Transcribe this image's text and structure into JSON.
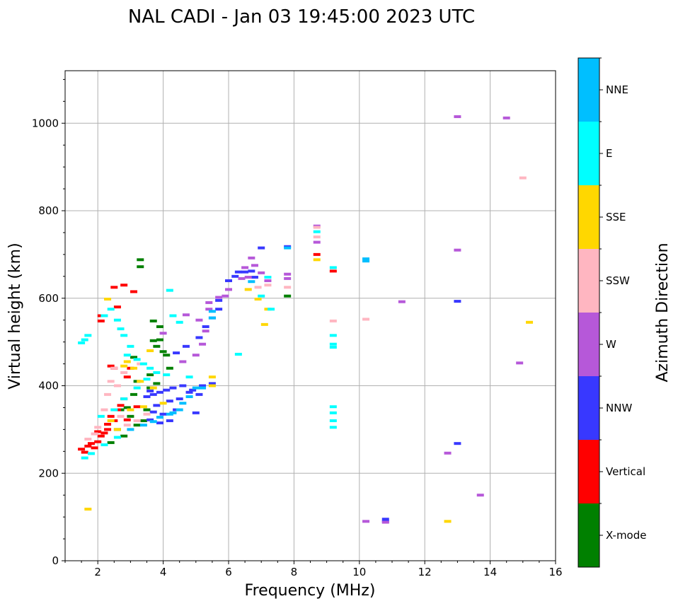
{
  "chart_data": {
    "type": "scatter",
    "title": "NAL CADI - Jan 03 19:45:00 2023 UTC",
    "xlabel": "Frequency (MHz)",
    "ylabel": "Virtual height (km)",
    "xlim": [
      1,
      16
    ],
    "ylim": [
      0,
      1120
    ],
    "xticks": [
      2,
      4,
      6,
      8,
      10,
      12,
      14,
      16
    ],
    "yticks": [
      0,
      200,
      400,
      600,
      800,
      1000
    ],
    "grid": true,
    "colorbar": {
      "label": "Azimuth Direction",
      "categories": [
        "X-mode",
        "Vertical",
        "NNW",
        "W",
        "SSW",
        "SSE",
        "E",
        "NNE"
      ],
      "colors": [
        "#008000",
        "#ff0000",
        "#3838ff",
        "#b658d9",
        "#ffb6c1",
        "#ffd700",
        "#00ffff",
        "#00bfff"
      ]
    },
    "series": [
      {
        "name": "X-mode",
        "points": [
          [
            3.3,
            688
          ],
          [
            3.3,
            672
          ],
          [
            3.7,
            548
          ],
          [
            3.9,
            535
          ],
          [
            3.7,
            503
          ],
          [
            3.8,
            490
          ],
          [
            4.0,
            478
          ],
          [
            3.2,
            410
          ],
          [
            3.6,
            395
          ],
          [
            3.1,
            380
          ],
          [
            2.9,
            350
          ],
          [
            3.4,
            320
          ],
          [
            3.2,
            310
          ],
          [
            2.6,
            300
          ],
          [
            2.7,
            345
          ],
          [
            3.0,
            330
          ],
          [
            3.5,
            345
          ],
          [
            3.9,
            505
          ],
          [
            4.1,
            470
          ],
          [
            3.8,
            405
          ],
          [
            7.8,
            605
          ],
          [
            3.1,
            465
          ],
          [
            3.6,
            425
          ],
          [
            2.4,
            270
          ],
          [
            2.8,
            285
          ],
          [
            4.2,
            440
          ]
        ]
      },
      {
        "name": "Vertical",
        "points": [
          [
            1.5,
            255
          ],
          [
            1.6,
            248
          ],
          [
            1.7,
            262
          ],
          [
            1.8,
            268
          ],
          [
            2.0,
            272
          ],
          [
            2.1,
            285
          ],
          [
            2.2,
            292
          ],
          [
            2.3,
            300
          ],
          [
            2.5,
            320
          ],
          [
            2.4,
            330
          ],
          [
            2.6,
            345
          ],
          [
            2.7,
            355
          ],
          [
            2.8,
            370
          ],
          [
            2.5,
            440
          ],
          [
            2.4,
            445
          ],
          [
            2.1,
            548
          ],
          [
            2.1,
            560
          ],
          [
            2.5,
            625
          ],
          [
            2.6,
            580
          ],
          [
            2.8,
            630
          ],
          [
            3.1,
            615
          ],
          [
            3.0,
            440
          ],
          [
            2.9,
            420
          ],
          [
            8.7,
            700
          ],
          [
            9.2,
            662
          ],
          [
            2.0,
            295
          ],
          [
            2.3,
            312
          ],
          [
            2.9,
            322
          ],
          [
            3.2,
            352
          ],
          [
            1.9,
            258
          ]
        ]
      },
      {
        "name": "NNW",
        "points": [
          [
            3.5,
            375
          ],
          [
            3.7,
            380
          ],
          [
            3.9,
            385
          ],
          [
            4.1,
            390
          ],
          [
            4.3,
            395
          ],
          [
            4.6,
            400
          ],
          [
            4.9,
            390
          ],
          [
            5.2,
            400
          ],
          [
            5.5,
            405
          ],
          [
            5.1,
            380
          ],
          [
            4.8,
            385
          ],
          [
            3.8,
            355
          ],
          [
            4.2,
            365
          ],
          [
            4.5,
            370
          ],
          [
            3.7,
            340
          ],
          [
            4.0,
            335
          ],
          [
            3.6,
            322
          ],
          [
            4.4,
            345
          ],
          [
            3.9,
            315
          ],
          [
            4.2,
            320
          ],
          [
            5.3,
            535
          ],
          [
            5.1,
            510
          ],
          [
            5.5,
            555
          ],
          [
            5.7,
            595
          ],
          [
            6.0,
            640
          ],
          [
            6.2,
            650
          ],
          [
            6.5,
            660
          ],
          [
            6.8,
            648
          ],
          [
            7.0,
            715
          ],
          [
            7.8,
            718
          ],
          [
            13.0,
            593
          ],
          [
            13.0,
            268
          ],
          [
            10.8,
            90
          ],
          [
            10.8,
            95
          ],
          [
            5.0,
            338
          ],
          [
            3.6,
            388
          ],
          [
            4.4,
            475
          ],
          [
            4.7,
            490
          ],
          [
            5.7,
            575
          ],
          [
            6.3,
            660
          ],
          [
            6.7,
            662
          ]
        ]
      },
      {
        "name": "W",
        "points": [
          [
            4.0,
            520
          ],
          [
            4.7,
            562
          ],
          [
            5.1,
            550
          ],
          [
            5.4,
            590
          ],
          [
            5.7,
            602
          ],
          [
            6.0,
            620
          ],
          [
            6.4,
            645
          ],
          [
            6.5,
            670
          ],
          [
            6.7,
            692
          ],
          [
            6.8,
            675
          ],
          [
            7.0,
            658
          ],
          [
            7.2,
            640
          ],
          [
            7.8,
            655
          ],
          [
            8.7,
            728
          ],
          [
            8.7,
            765
          ],
          [
            11.3,
            592
          ],
          [
            13.0,
            710
          ],
          [
            13.0,
            1015
          ],
          [
            14.5,
            1012
          ],
          [
            14.9,
            452
          ],
          [
            12.7,
            246
          ],
          [
            13.7,
            150
          ],
          [
            10.2,
            90
          ],
          [
            10.8,
            88
          ],
          [
            5.3,
            525
          ],
          [
            5.4,
            575
          ],
          [
            5.9,
            605
          ],
          [
            6.6,
            648
          ],
          [
            7.8,
            645
          ],
          [
            5.2,
            495
          ],
          [
            5.0,
            470
          ],
          [
            4.6,
            455
          ]
        ]
      },
      {
        "name": "SSW",
        "points": [
          [
            1.7,
            278
          ],
          [
            1.9,
            290
          ],
          [
            2.2,
            345
          ],
          [
            2.4,
            410
          ],
          [
            2.5,
            440
          ],
          [
            2.7,
            330
          ],
          [
            2.9,
            310
          ],
          [
            3.2,
            320
          ],
          [
            3.5,
            335
          ],
          [
            6.9,
            625
          ],
          [
            7.2,
            630
          ],
          [
            7.8,
            625
          ],
          [
            8.7,
            740
          ],
          [
            8.7,
            762
          ],
          [
            9.2,
            548
          ],
          [
            10.2,
            552
          ],
          [
            15.0,
            875
          ],
          [
            2.3,
            380
          ],
          [
            2.6,
            400
          ],
          [
            2.8,
            430
          ],
          [
            3.3,
            450
          ],
          [
            2.0,
            305
          ]
        ]
      },
      {
        "name": "SSE",
        "points": [
          [
            1.7,
            118
          ],
          [
            2.3,
            598
          ],
          [
            2.8,
            445
          ],
          [
            2.9,
            455
          ],
          [
            3.1,
            440
          ],
          [
            3.3,
            410
          ],
          [
            3.6,
            480
          ],
          [
            4.0,
            360
          ],
          [
            5.5,
            420
          ],
          [
            5.5,
            400
          ],
          [
            6.6,
            620
          ],
          [
            6.9,
            598
          ],
          [
            7.1,
            540
          ],
          [
            7.2,
            575
          ],
          [
            8.7,
            688
          ],
          [
            12.7,
            90
          ],
          [
            15.2,
            545
          ],
          [
            2.6,
            300
          ],
          [
            3.0,
            345
          ],
          [
            2.4,
            320
          ],
          [
            3.4,
            352
          ],
          [
            3.7,
            395
          ]
        ]
      },
      {
        "name": "E",
        "points": [
          [
            1.5,
            498
          ],
          [
            1.6,
            505
          ],
          [
            1.7,
            515
          ],
          [
            2.2,
            560
          ],
          [
            2.4,
            575
          ],
          [
            2.6,
            550
          ],
          [
            2.7,
            530
          ],
          [
            2.8,
            515
          ],
          [
            3.0,
            490
          ],
          [
            2.9,
            470
          ],
          [
            3.2,
            460
          ],
          [
            3.4,
            450
          ],
          [
            3.6,
            440
          ],
          [
            3.8,
            430
          ],
          [
            4.1,
            425
          ],
          [
            4.2,
            618
          ],
          [
            4.5,
            545
          ],
          [
            6.3,
            472
          ],
          [
            7.0,
            605
          ],
          [
            7.2,
            648
          ],
          [
            7.3,
            575
          ],
          [
            8.7,
            752
          ],
          [
            9.2,
            670
          ],
          [
            9.2,
            515
          ],
          [
            9.2,
            495
          ],
          [
            9.2,
            488
          ],
          [
            9.2,
            352
          ],
          [
            9.2,
            338
          ],
          [
            9.2,
            320
          ],
          [
            9.2,
            305
          ],
          [
            2.1,
            330
          ],
          [
            2.5,
            345
          ],
          [
            2.8,
            370
          ],
          [
            3.2,
            395
          ],
          [
            3.5,
            415
          ],
          [
            4.8,
            420
          ],
          [
            4.3,
            560
          ],
          [
            1.6,
            235
          ],
          [
            1.8,
            245
          ],
          [
            2.2,
            265
          ],
          [
            2.6,
            282
          ]
        ]
      },
      {
        "name": "NNE",
        "points": [
          [
            3.9,
            328
          ],
          [
            4.2,
            335
          ],
          [
            4.5,
            345
          ],
          [
            4.8,
            375
          ],
          [
            5.0,
            395
          ],
          [
            5.5,
            555
          ],
          [
            5.5,
            570
          ],
          [
            6.7,
            638
          ],
          [
            7.8,
            715
          ],
          [
            10.2,
            690
          ],
          [
            10.2,
            685
          ],
          [
            3.4,
            310
          ],
          [
            3.7,
            318
          ],
          [
            4.3,
            338
          ],
          [
            4.6,
            360
          ],
          [
            5.2,
            395
          ],
          [
            3.0,
            300
          ]
        ]
      }
    ]
  }
}
